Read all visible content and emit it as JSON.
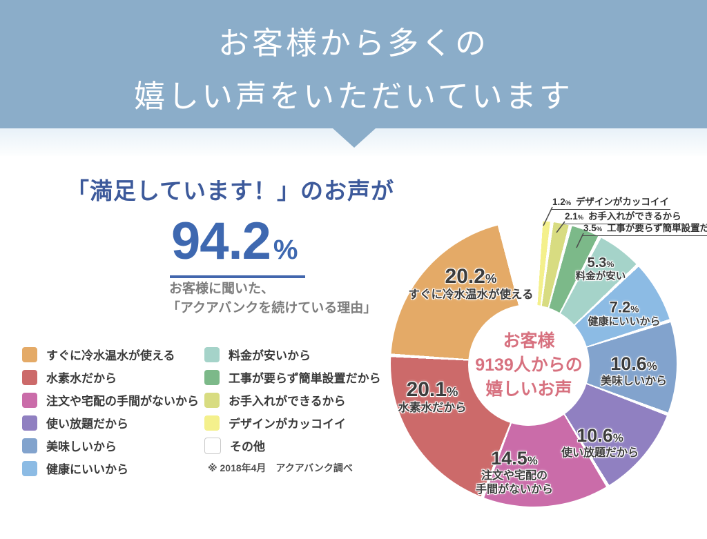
{
  "header": {
    "line1": "お客様から多くの",
    "line2": "嬉しい声をいただいています"
  },
  "main": {
    "claim_title": "「満足しています！」のお声が",
    "satisfaction_value": "94.2",
    "percent_sign": "%",
    "sub_line1": "お客様に聞いた、",
    "sub_line2": "「アクアバンクを続けている理由」",
    "note": "※ 2018年4月　アクアバンク調べ"
  },
  "colors": {
    "banner": "#8badc9",
    "title_blue": "#3d5a9b",
    "stat_blue": "#3e68b0",
    "center_pink": "#d7717f",
    "other_border": "#c9c9c9"
  },
  "chart_data": {
    "type": "donut",
    "title": "お客様9139人からの嬉しいお声",
    "unit": "%",
    "center_text": {
      "line1": "お客様",
      "line2": "9139人からの",
      "line3": "嬉しいお声"
    },
    "slices": [
      {
        "id": "design",
        "label": "デザインがカッコイイ",
        "value": 1.2,
        "color": "#f4f08c",
        "callout": true
      },
      {
        "id": "care",
        "label": "お手入れができるから",
        "value": 2.1,
        "color": "#d8dc81",
        "callout": true
      },
      {
        "id": "install",
        "label": "工事が要らず簡単設置だから",
        "value": 3.5,
        "color": "#7cb989",
        "callout": true
      },
      {
        "id": "price",
        "label": "料金が安い",
        "value": 5.3,
        "color": "#a5d3c9"
      },
      {
        "id": "health",
        "label": "健康にいいから",
        "value": 7.2,
        "color": "#8cbbe4"
      },
      {
        "id": "taste",
        "label": "美味しいから",
        "value": 10.6,
        "color": "#82a3cd"
      },
      {
        "id": "unlimited",
        "label": "使い放題だから",
        "value": 10.6,
        "color": "#9080c1"
      },
      {
        "id": "order",
        "label": "注文や宅配の手間がないから",
        "value": 14.5,
        "color": "#ca6ca9",
        "label_lines": [
          "注文や宅配の",
          "手間がないから"
        ]
      },
      {
        "id": "hydrogen",
        "label": "水素水だから",
        "value": 20.1,
        "color": "#cc6a6a"
      },
      {
        "id": "instant",
        "label": "すぐに冷水温水が使える",
        "value": 20.2,
        "color": "#e4aa67"
      },
      {
        "id": "other",
        "label": "その他",
        "value": null,
        "color": "#ffffff"
      }
    ]
  },
  "legend": {
    "left": [
      {
        "slice": "instant",
        "label": "すぐに冷水温水が使える"
      },
      {
        "slice": "hydrogen",
        "label": "水素水だから"
      },
      {
        "slice": "order",
        "label": "注文や宅配の手間がないから"
      },
      {
        "slice": "unlimited",
        "label": "使い放題だから"
      },
      {
        "slice": "taste",
        "label": "美味しいから"
      },
      {
        "slice": "health",
        "label": "健康にいいから"
      }
    ],
    "right": [
      {
        "slice": "price",
        "label": "料金が安いから"
      },
      {
        "slice": "install",
        "label": "工事が要らず簡単設置だから"
      },
      {
        "slice": "care",
        "label": "お手入れができるから"
      },
      {
        "slice": "design",
        "label": "デザインがカッコイイ"
      },
      {
        "slice": "other",
        "label": "その他"
      }
    ]
  }
}
